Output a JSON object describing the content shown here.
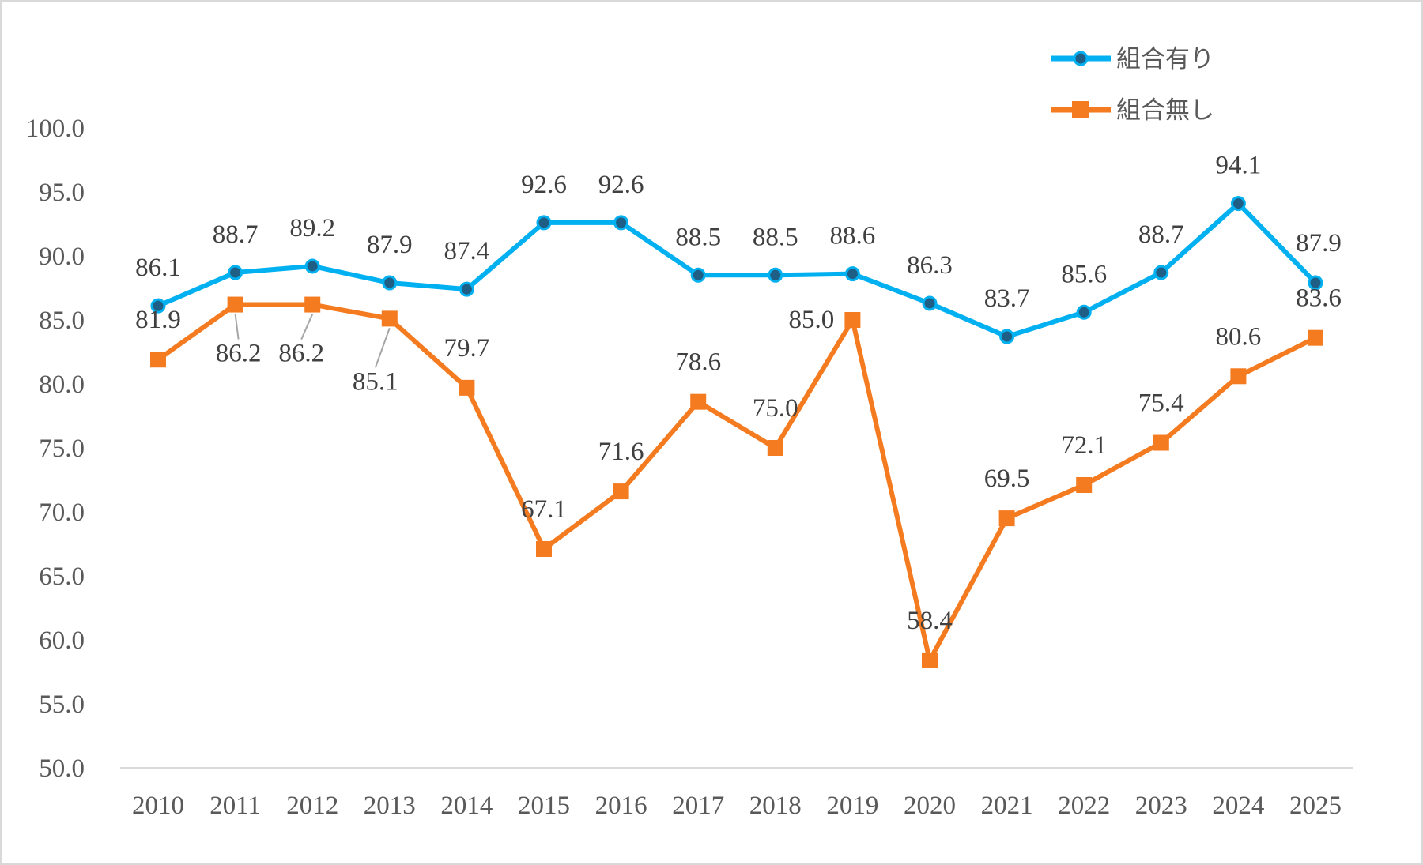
{
  "chart_data": {
    "type": "line",
    "title": "",
    "xlabel": "",
    "ylabel": "",
    "categories": [
      "2010",
      "2011",
      "2012",
      "2013",
      "2014",
      "2015",
      "2016",
      "2017",
      "2018",
      "2019",
      "2020",
      "2021",
      "2022",
      "2023",
      "2024",
      "2025"
    ],
    "ylim": [
      50,
      100
    ],
    "ytick_labels": [
      "50.0",
      "55.0",
      "60.0",
      "65.0",
      "70.0",
      "75.0",
      "80.0",
      "85.0",
      "90.0",
      "95.0",
      "100.0"
    ],
    "grid": false,
    "legend_position": "top-right",
    "series": [
      {
        "name": "組合有り",
        "color": "#00b0f0",
        "marker": "circle",
        "values": [
          86.1,
          88.7,
          89.2,
          87.9,
          87.4,
          92.6,
          92.6,
          88.5,
          88.5,
          88.6,
          86.3,
          83.7,
          85.6,
          88.7,
          94.1,
          87.9
        ],
        "labels": [
          "86.1",
          "88.7",
          "89.2",
          "87.9",
          "87.4",
          "92.6",
          "92.6",
          "88.5",
          "88.5",
          "88.6",
          "86.3",
          "83.7",
          "85.6",
          "88.7",
          "94.1",
          "87.9"
        ]
      },
      {
        "name": "組合無し",
        "color": "#f47b20",
        "marker": "square",
        "values": [
          81.9,
          86.2,
          86.2,
          85.1,
          79.7,
          67.1,
          71.6,
          78.6,
          75.0,
          85.0,
          58.4,
          69.5,
          72.1,
          75.4,
          80.6,
          83.6
        ],
        "labels": [
          "81.9",
          "86.2",
          "86.2",
          "85.1",
          "79.7",
          "67.1",
          "71.6",
          "78.6",
          "75.0",
          "85.0",
          "58.4",
          "69.5",
          "72.1",
          "75.4",
          "80.6",
          "83.6"
        ]
      }
    ]
  }
}
